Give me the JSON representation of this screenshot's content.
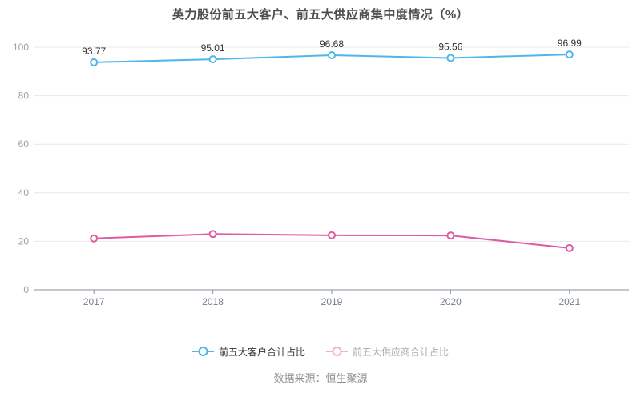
{
  "title": "英力股份前五大客户、前五大供应商集中度情况（%）",
  "footer": {
    "text": "数据来源：恒生聚源"
  },
  "legend": {
    "items": [
      {
        "label": "前五大客户合计占比",
        "marker_color": "#4eb7e8",
        "text_color": "#333333"
      },
      {
        "label": "前五大供应商合计占比",
        "marker_color": "#f0afd3",
        "text_color": "#ababab"
      }
    ]
  },
  "chart_data": {
    "type": "line",
    "title": "英力股份前五大客户、前五大供应商集中度情况（%）",
    "categories": [
      "2017",
      "2018",
      "2019",
      "2020",
      "2021"
    ],
    "series": [
      {
        "name": "前五大客户合计占比",
        "values": [
          93.77,
          95.01,
          96.68,
          95.56,
          96.99
        ],
        "labels": [
          "93.77",
          "95.01",
          "96.68",
          "95.56",
          "96.99"
        ],
        "color": "#4eb7e8"
      },
      {
        "name": "前五大供应商合计占比",
        "values": [
          21.2,
          23.0,
          22.5,
          22.4,
          17.2
        ],
        "labels": [],
        "color": "#e059a2"
      }
    ],
    "xlabel": "",
    "ylabel": "",
    "ylim": [
      0,
      100
    ],
    "yticks": [
      0,
      20,
      40,
      60,
      80,
      100
    ],
    "grid": true,
    "legend_position": "bottom"
  },
  "colors": {
    "background": "#ffffff",
    "title": "#4d4d4d",
    "grid": "#e4e9ef",
    "axis": "#8a919e",
    "y_label": "#9aa2b1",
    "x_label": "#747d8d",
    "data_label": "#333333"
  }
}
